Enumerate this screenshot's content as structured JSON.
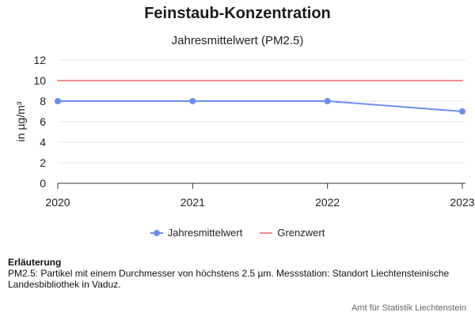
{
  "colors": {
    "jahresmittelwert": "#6a8ff0",
    "grenzwert": "#f28a8a",
    "grid": "#e6e6e6",
    "axis": "#333333"
  },
  "chart_data": {
    "type": "line",
    "title": "Feinstaub-Konzentration",
    "subtitle": "Jahresmittelwert (PM2.5)",
    "xlabel": "",
    "ylabel": "in µg/m³",
    "x": [
      "2020",
      "2021",
      "2022",
      "2023"
    ],
    "ylim": [
      0,
      12
    ],
    "yticks": [
      "0",
      "2",
      "4",
      "6",
      "8",
      "10",
      "12"
    ],
    "grid": true,
    "legend_position": "bottom",
    "series": [
      {
        "name": "Jahresmittelwert",
        "values": [
          8,
          8,
          8,
          7
        ],
        "markers": true
      },
      {
        "name": "Grenzwert",
        "values": [
          10,
          10,
          10,
          10
        ],
        "markers": false
      }
    ]
  },
  "note": {
    "heading": "Erläuterung",
    "text": "PM2.5: Partikel mit einem Durchmesser von höchstens 2.5 µm. Messstation: Standort Liechtensteinische Landesbibliothek in Vaduz."
  },
  "credit": "Amt für Statistik Liechtenstein"
}
